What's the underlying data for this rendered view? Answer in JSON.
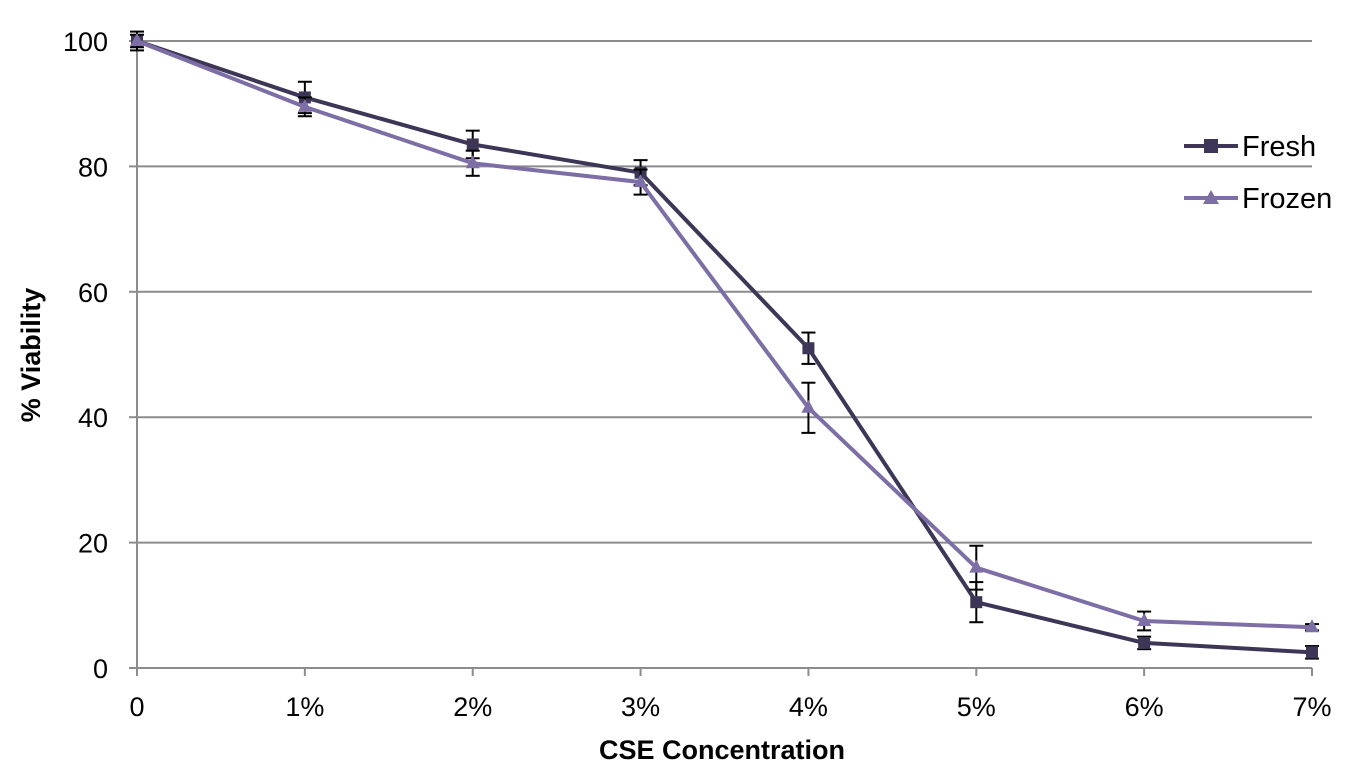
{
  "chart_data": {
    "type": "line",
    "xlabel": "CSE Concentration",
    "ylabel": "% Viability",
    "categories": [
      "0",
      "1%",
      "2%",
      "3%",
      "4%",
      "5%",
      "6%",
      "7%"
    ],
    "ylim": [
      0,
      100
    ],
    "yticks": [
      0,
      20,
      40,
      60,
      80,
      100
    ],
    "grid": "horizontal",
    "legend_position": "right",
    "series": [
      {
        "name": "Fresh",
        "marker": "square",
        "color": "#3d3656",
        "values": [
          100,
          91,
          83.5,
          79,
          51,
          10.5,
          4,
          2.5
        ],
        "errors": [
          1.5,
          2.5,
          2.2,
          2.0,
          2.5,
          3.2,
          1.0,
          1.0
        ]
      },
      {
        "name": "Frozen",
        "marker": "triangle",
        "color": "#7e6ea6",
        "values": [
          100,
          89.5,
          80.5,
          77.5,
          41.5,
          16,
          7.5,
          6.5
        ],
        "errors": [
          1.0,
          1.5,
          2.0,
          2.0,
          4.0,
          3.5,
          1.5,
          0.5
        ]
      }
    ]
  }
}
